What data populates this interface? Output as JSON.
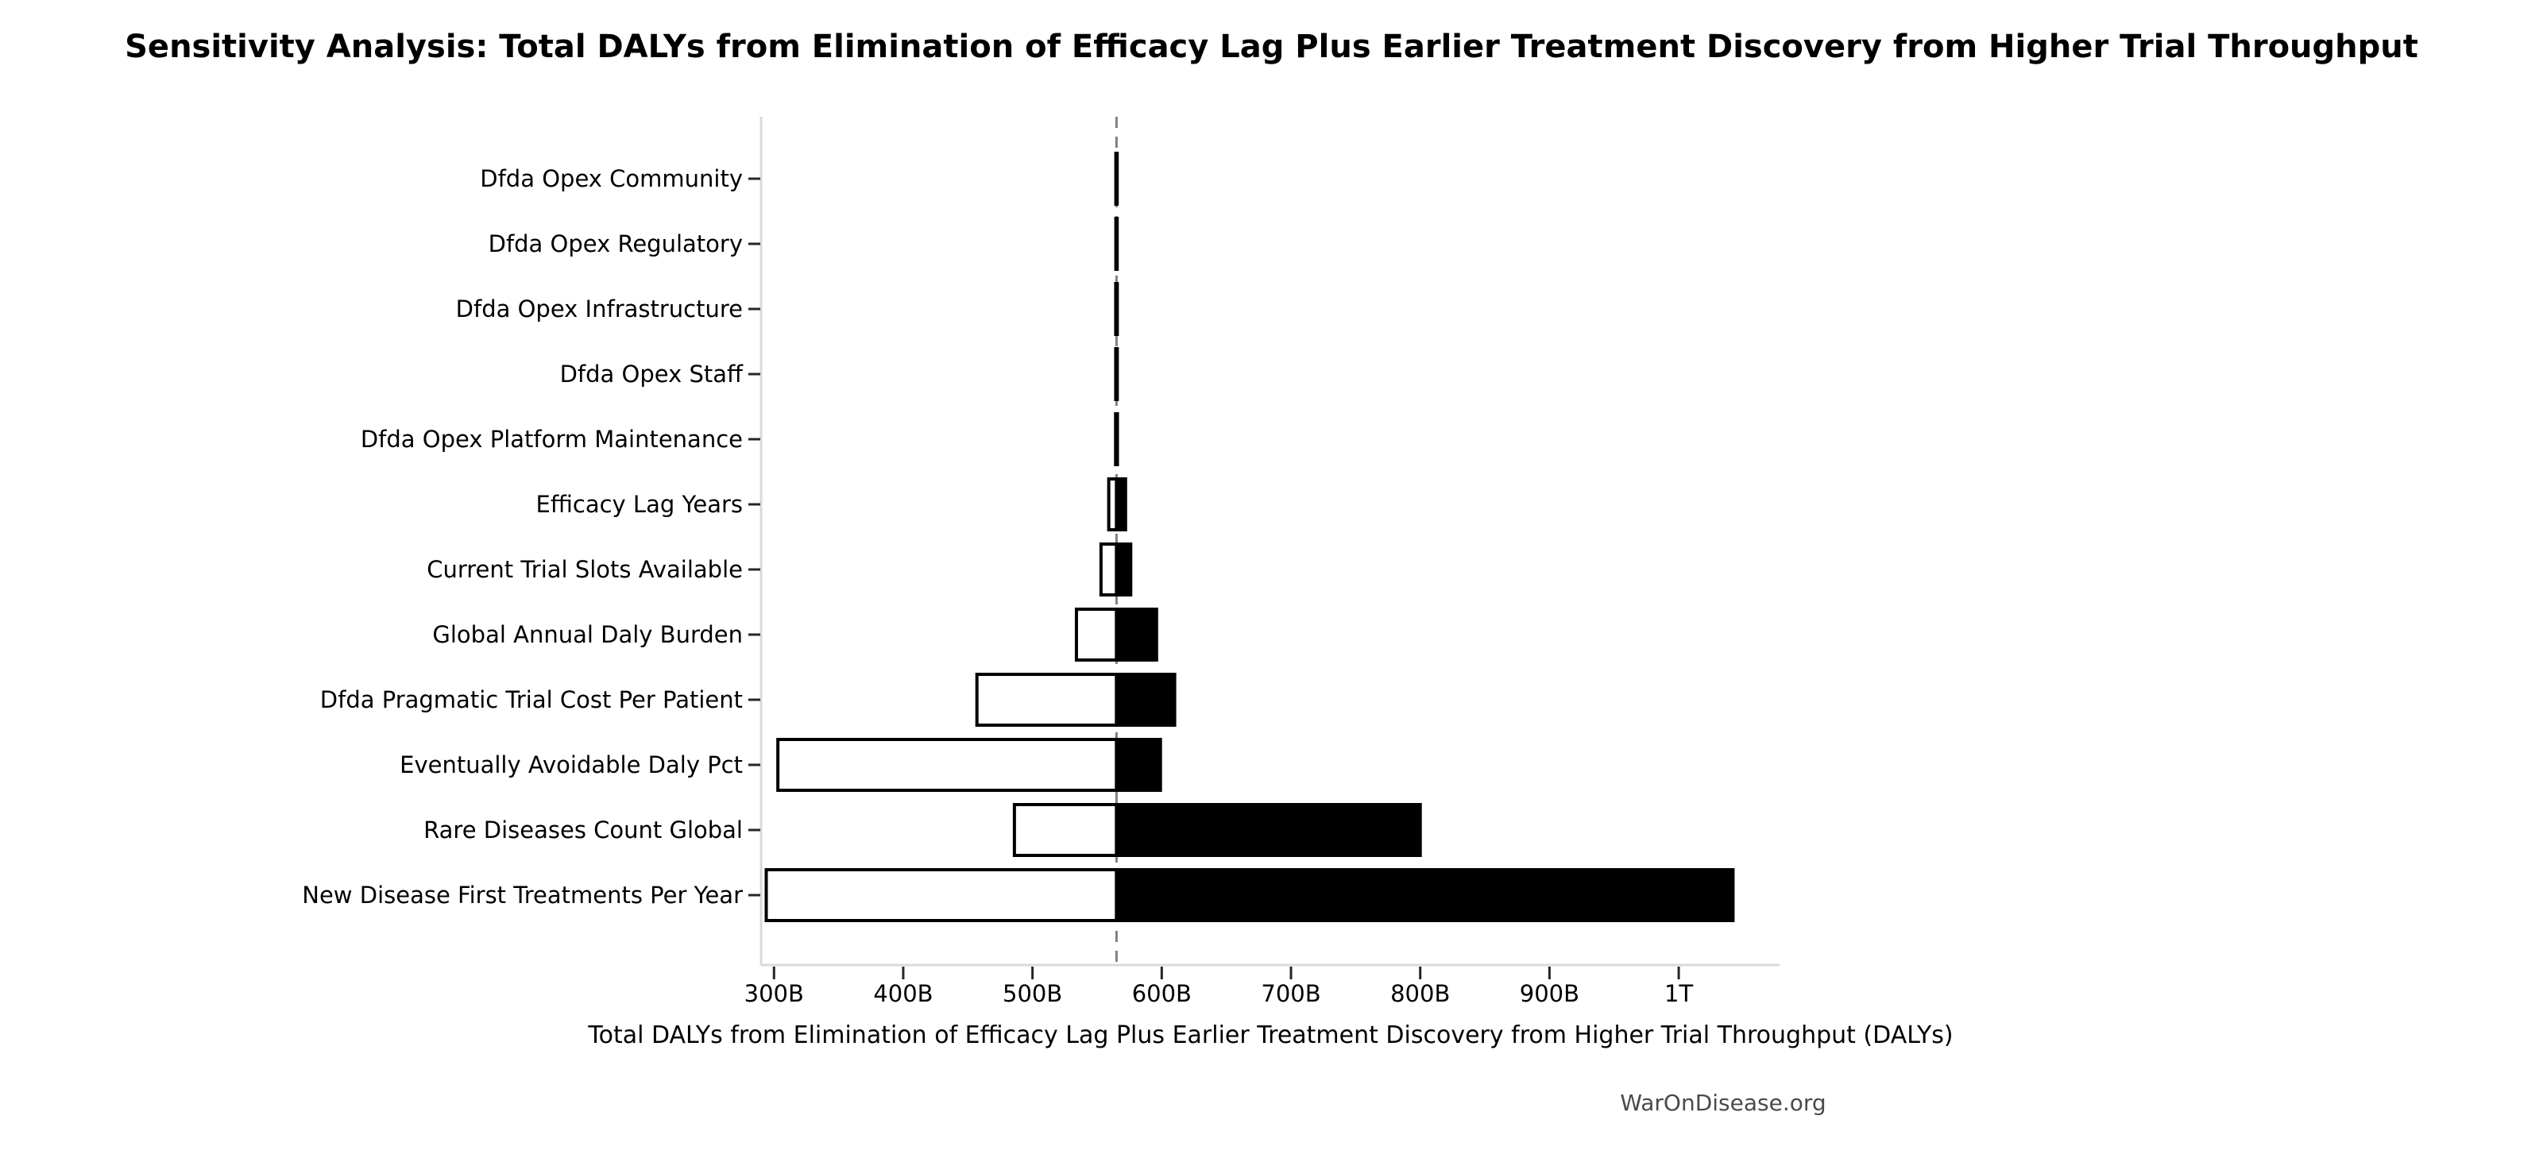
{
  "title": "Sensitivity Analysis: Total DALYs from Elimination of Efficacy Lag Plus Earlier Treatment Discovery from Higher Trial Throughput",
  "footer": {
    "text": "WarOnDisease.org"
  },
  "chart_data": {
    "type": "bar",
    "subtype": "tornado-sensitivity",
    "orientation": "horizontal",
    "title": "Sensitivity Analysis: Total DALYs from Elimination of Efficacy Lag Plus Earlier Treatment Discovery from Higher Trial Throughput",
    "xlabel": "Total DALYs from Elimination of Efficacy Lag Plus Earlier Treatment Discovery from Higher Trial Throughput (DALYs)",
    "ylabel": "",
    "values_unit": "DALYs, billions (B); 1T = 1000B",
    "baseline_value": 565,
    "xlim": [
      290,
      1078
    ],
    "grid": false,
    "legend": "none",
    "x_ticks": [
      {
        "value": 300,
        "label": "300B"
      },
      {
        "value": 400,
        "label": "400B"
      },
      {
        "value": 500,
        "label": "500B"
      },
      {
        "value": 600,
        "label": "600B"
      },
      {
        "value": 700,
        "label": "700B"
      },
      {
        "value": 800,
        "label": "800B"
      },
      {
        "value": 900,
        "label": "900B"
      },
      {
        "value": 1000,
        "label": "1T"
      }
    ],
    "categories": [
      "Dfda Opex Community",
      "Dfda Opex Regulatory",
      "Dfda Opex Infrastructure",
      "Dfda Opex Staff",
      "Dfda Opex Platform Maintenance",
      "Efficacy Lag Years",
      "Current Trial Slots Available",
      "Global Annual Daly Burden",
      "Dfda Pragmatic Trial Cost Per Patient",
      "Eventually Avoidable Daly Pct",
      "Rare Diseases Count Global",
      "New Disease First Treatments Per Year"
    ],
    "rows": [
      {
        "label": "Dfda Opex Community",
        "low": 564.5,
        "high": 565.5
      },
      {
        "label": "Dfda Opex Regulatory",
        "low": 564.5,
        "high": 565.5
      },
      {
        "label": "Dfda Opex Infrastructure",
        "low": 564.4,
        "high": 565.6
      },
      {
        "label": "Dfda Opex Staff",
        "low": 564.4,
        "high": 565.6
      },
      {
        "label": "Dfda Opex Platform Maintenance",
        "low": 564.3,
        "high": 565.7
      },
      {
        "label": "Efficacy Lag Years",
        "low": 559,
        "high": 572
      },
      {
        "label": "Current Trial Slots Available",
        "low": 553,
        "high": 576
      },
      {
        "label": "Global Annual Daly Burden",
        "low": 534,
        "high": 596
      },
      {
        "label": "Dfda Pragmatic Trial Cost Per Patient",
        "low": 457,
        "high": 610
      },
      {
        "label": "Eventually Avoidable Daly Pct",
        "low": 303,
        "high": 599
      },
      {
        "label": "Rare Diseases Count Global",
        "low": 486,
        "high": 800
      },
      {
        "label": "New Disease First Treatments Per Year",
        "low": 294,
        "high": 1042
      }
    ],
    "colors": {
      "low_bar_fill": "#ffffff",
      "high_bar_fill": "#000000",
      "bar_edge": "#000000",
      "baseline_line": "#808080",
      "spine": "#d9d9d9",
      "tick_mark": "#262626",
      "tick_label": "#000000",
      "footer_text": "#4a4a4a"
    }
  }
}
